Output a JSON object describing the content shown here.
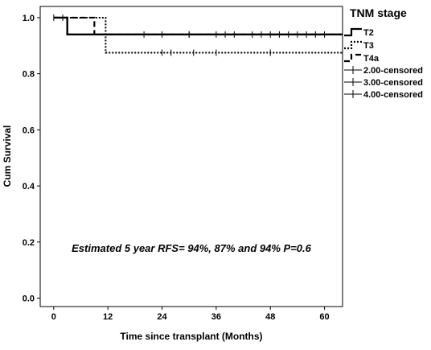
{
  "chart_data": {
    "type": "line",
    "xlabel": "Time since transplant (Months)",
    "ylabel": "Cum Survival",
    "xlim": [
      -3,
      64
    ],
    "ylim": [
      -0.03,
      1.04
    ],
    "xticks": [
      "0",
      "12",
      "24",
      "36",
      "48",
      "60"
    ],
    "yticks": [
      "0.0",
      "0.2",
      "0.4",
      "0.6",
      "0.8",
      "1.0"
    ],
    "legend_title": "TNM stage",
    "legend_position": "right",
    "annotation": "Estimated 5 year RFS= 94%, 87% and 94% P=0.6",
    "grid": false,
    "series": [
      {
        "name": "T2",
        "style": "solid",
        "x": [
          0,
          3,
          3,
          64
        ],
        "y": [
          1.0,
          1.0,
          0.94,
          0.94
        ],
        "censored_x": [
          0,
          20,
          30,
          36,
          38,
          40,
          44,
          46,
          48,
          50,
          52,
          54,
          56,
          58,
          60
        ]
      },
      {
        "name": "T3",
        "style": "dotted",
        "x": [
          0,
          11.5,
          11.5,
          64
        ],
        "y": [
          1.0,
          1.0,
          0.875,
          0.875
        ],
        "censored_x": [
          2,
          24,
          26,
          31,
          36,
          48
        ]
      },
      {
        "name": "T4a",
        "style": "dashed",
        "x": [
          0,
          9,
          9,
          64
        ],
        "y": [
          1.0,
          1.0,
          0.94,
          0.94
        ],
        "censored_x": [
          24,
          30
        ]
      }
    ],
    "censored_legend": [
      "2.00-censored",
      "3.00-censored",
      "4.00-censored"
    ]
  }
}
